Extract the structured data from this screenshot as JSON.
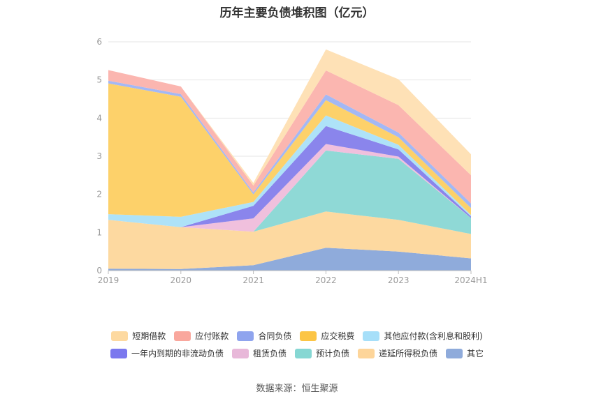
{
  "title": "历年主要负债堆积图（亿元）",
  "source": "数据来源：恒生聚源",
  "chart_data": {
    "type": "area",
    "stacked": true,
    "categories": [
      "2019",
      "2020",
      "2021",
      "2022",
      "2023",
      "2024H1"
    ],
    "yticks": [
      "0",
      "1",
      "2",
      "3",
      "4",
      "5",
      "6"
    ],
    "ylim": [
      0,
      6
    ],
    "grid": true,
    "legend_position": "bottom",
    "series": [
      {
        "name": "其它",
        "color": "#8fabdb",
        "values": [
          0.05,
          0.04,
          0.14,
          0.6,
          0.5,
          0.32
        ]
      },
      {
        "name": "递延所得税负债",
        "color": "#fdd9a0",
        "values": [
          1.28,
          1.1,
          0.88,
          0.95,
          0.83,
          0.64
        ]
      },
      {
        "name": "预计负债",
        "color": "#8fd9d6",
        "values": [
          0.0,
          0.0,
          0.0,
          1.6,
          1.6,
          0.42
        ]
      },
      {
        "name": "租赁负债",
        "color": "#f0c0dd",
        "values": [
          0.0,
          0.0,
          0.35,
          0.17,
          0.06,
          0.0
        ]
      },
      {
        "name": "一年内到期的非流动负债",
        "color": "#8a85ec",
        "values": [
          0.0,
          0.0,
          0.33,
          0.47,
          0.19,
          0.04
        ]
      },
      {
        "name": "其他应付款(含利息和股利)",
        "color": "#aee2f8",
        "values": [
          0.15,
          0.27,
          0.1,
          0.28,
          0.12,
          0.04
        ]
      },
      {
        "name": "应交税费",
        "color": "#fdd16a",
        "values": [
          3.43,
          3.15,
          0.2,
          0.4,
          0.2,
          0.18
        ]
      },
      {
        "name": "合同负债",
        "color": "#a3b8f5",
        "values": [
          0.07,
          0.07,
          0.05,
          0.15,
          0.12,
          0.12
        ]
      },
      {
        "name": "应付账款",
        "color": "#fbb6b0",
        "values": [
          0.28,
          0.2,
          0.18,
          0.63,
          0.72,
          0.74
        ]
      },
      {
        "name": "短期借款",
        "color": "#fee1b6",
        "values": [
          0.0,
          0.0,
          0.07,
          0.55,
          0.68,
          0.55
        ]
      }
    ]
  },
  "legend": {
    "row1": [
      "短期借款",
      "应付账款",
      "合同负债",
      "应交税费",
      "其他应付款(含利息和股利)"
    ],
    "row2": [
      "一年内到期的非流动负债",
      "租赁负债",
      "预计负债",
      "递延所得税负债",
      "其它"
    ],
    "colors": {
      "短期借款": "#fdd9a0",
      "应付账款": "#f9a79d",
      "合同负债": "#8fa4ee",
      "应交税费": "#fcc545",
      "其他应付款(含利息和股利)": "#a6dff9",
      "一年内到期的非流动负债": "#7b78ee",
      "租赁负债": "#e8b8d9",
      "预计负债": "#86d7d3",
      "递延所得税负债": "#fdd59a",
      "其它": "#8fabdb"
    }
  }
}
